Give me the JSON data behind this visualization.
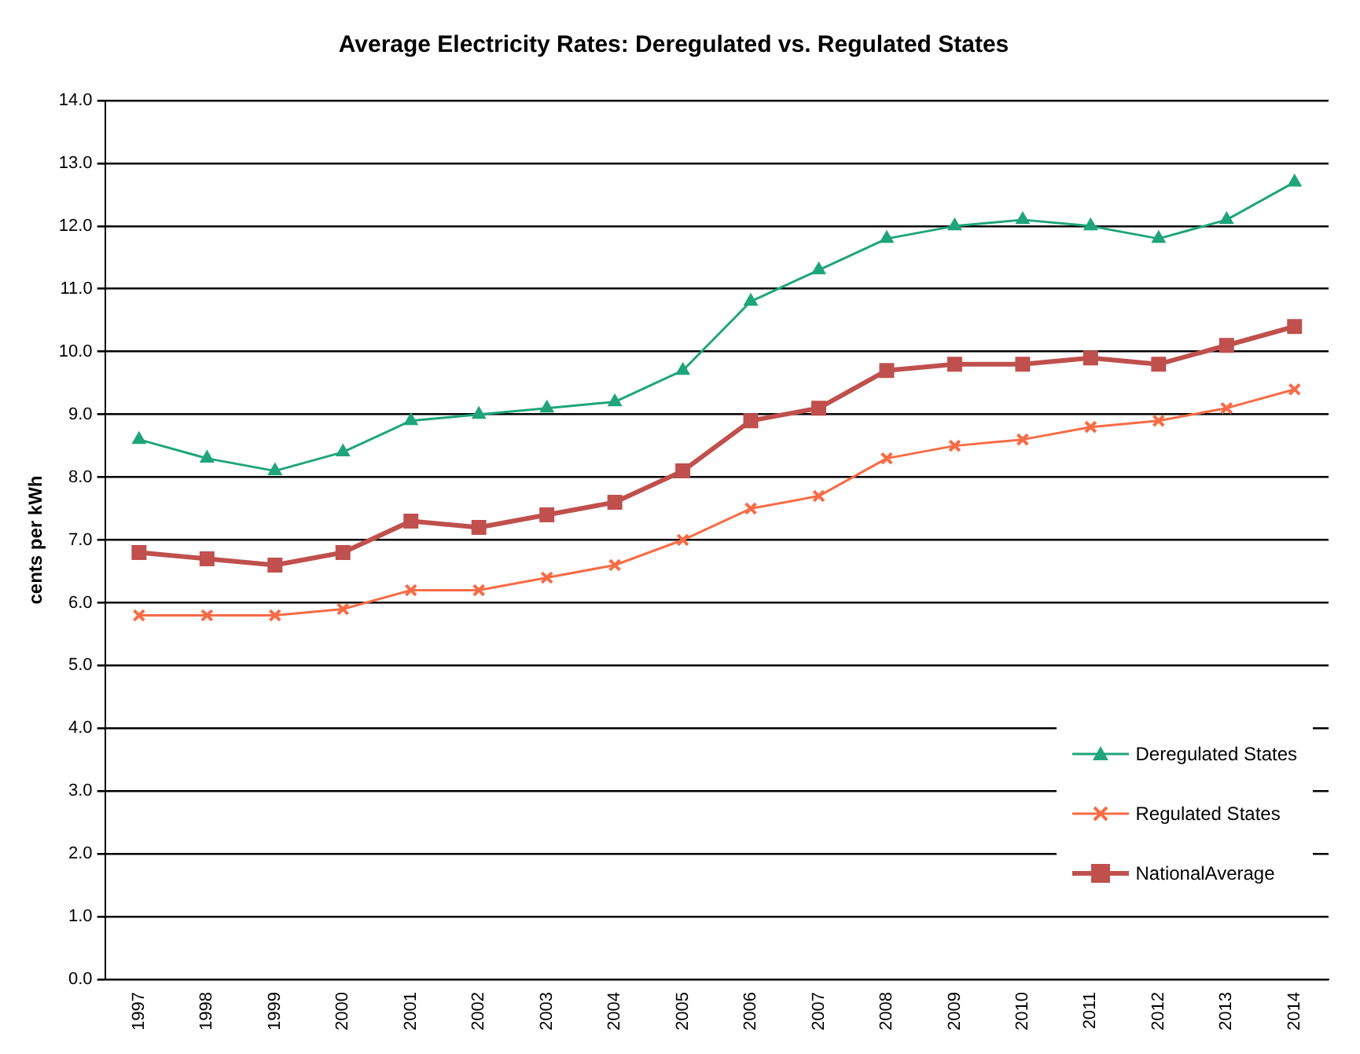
{
  "chart_data": {
    "type": "line",
    "title": "Average Electricity Rates: Deregulated vs. Regulated States",
    "ylabel": "cents per kWh",
    "categories": [
      "1997",
      "1998",
      "1999",
      "2000",
      "2001",
      "2002",
      "2003",
      "2004",
      "2005",
      "2006",
      "2007",
      "2008",
      "2009",
      "2010",
      "2011",
      "2012",
      "2013",
      "2014"
    ],
    "series": [
      {
        "name": "Deregulated States",
        "color": "#1fa57a",
        "marker": "triangle",
        "values": [
          8.6,
          8.3,
          8.1,
          8.4,
          8.9,
          9.0,
          9.1,
          9.2,
          9.7,
          10.8,
          11.3,
          11.8,
          12.0,
          12.1,
          12.0,
          11.8,
          12.1,
          12.7
        ]
      },
      {
        "name": "Regulated States",
        "color": "#f86b45",
        "marker": "cross",
        "values": [
          5.8,
          5.8,
          5.8,
          5.9,
          6.2,
          6.2,
          6.4,
          6.6,
          7.0,
          7.5,
          7.7,
          8.3,
          8.5,
          8.6,
          8.8,
          8.9,
          9.1,
          9.4
        ]
      },
      {
        "name": "NationalAverage",
        "color": "#c0504d",
        "marker": "square",
        "values": [
          6.8,
          6.7,
          6.6,
          6.8,
          7.3,
          7.2,
          7.4,
          7.6,
          8.1,
          8.9,
          9.1,
          9.7,
          9.8,
          9.8,
          9.9,
          9.8,
          10.1,
          10.4
        ]
      }
    ],
    "ylim": [
      0,
      14
    ],
    "yticks": [
      {
        "value": 0,
        "label": "0.0"
      },
      {
        "value": 1,
        "label": "1.0"
      },
      {
        "value": 2,
        "label": "2.0"
      },
      {
        "value": 3,
        "label": "3.0"
      },
      {
        "value": 4,
        "label": "4.0"
      },
      {
        "value": 5,
        "label": "5.0"
      },
      {
        "value": 6,
        "label": "6.0"
      },
      {
        "value": 7,
        "label": "7.0"
      },
      {
        "value": 8,
        "label": "8.0"
      },
      {
        "value": 9,
        "label": "9.0"
      },
      {
        "value": 10,
        "label": "10.0"
      },
      {
        "value": 11,
        "label": "11.0"
      },
      {
        "value": 12,
        "label": "12.0"
      },
      {
        "value": 13,
        "label": "13.0"
      },
      {
        "value": 14,
        "label": "14.0"
      }
    ],
    "grid": "y",
    "legend": "bottom right"
  }
}
